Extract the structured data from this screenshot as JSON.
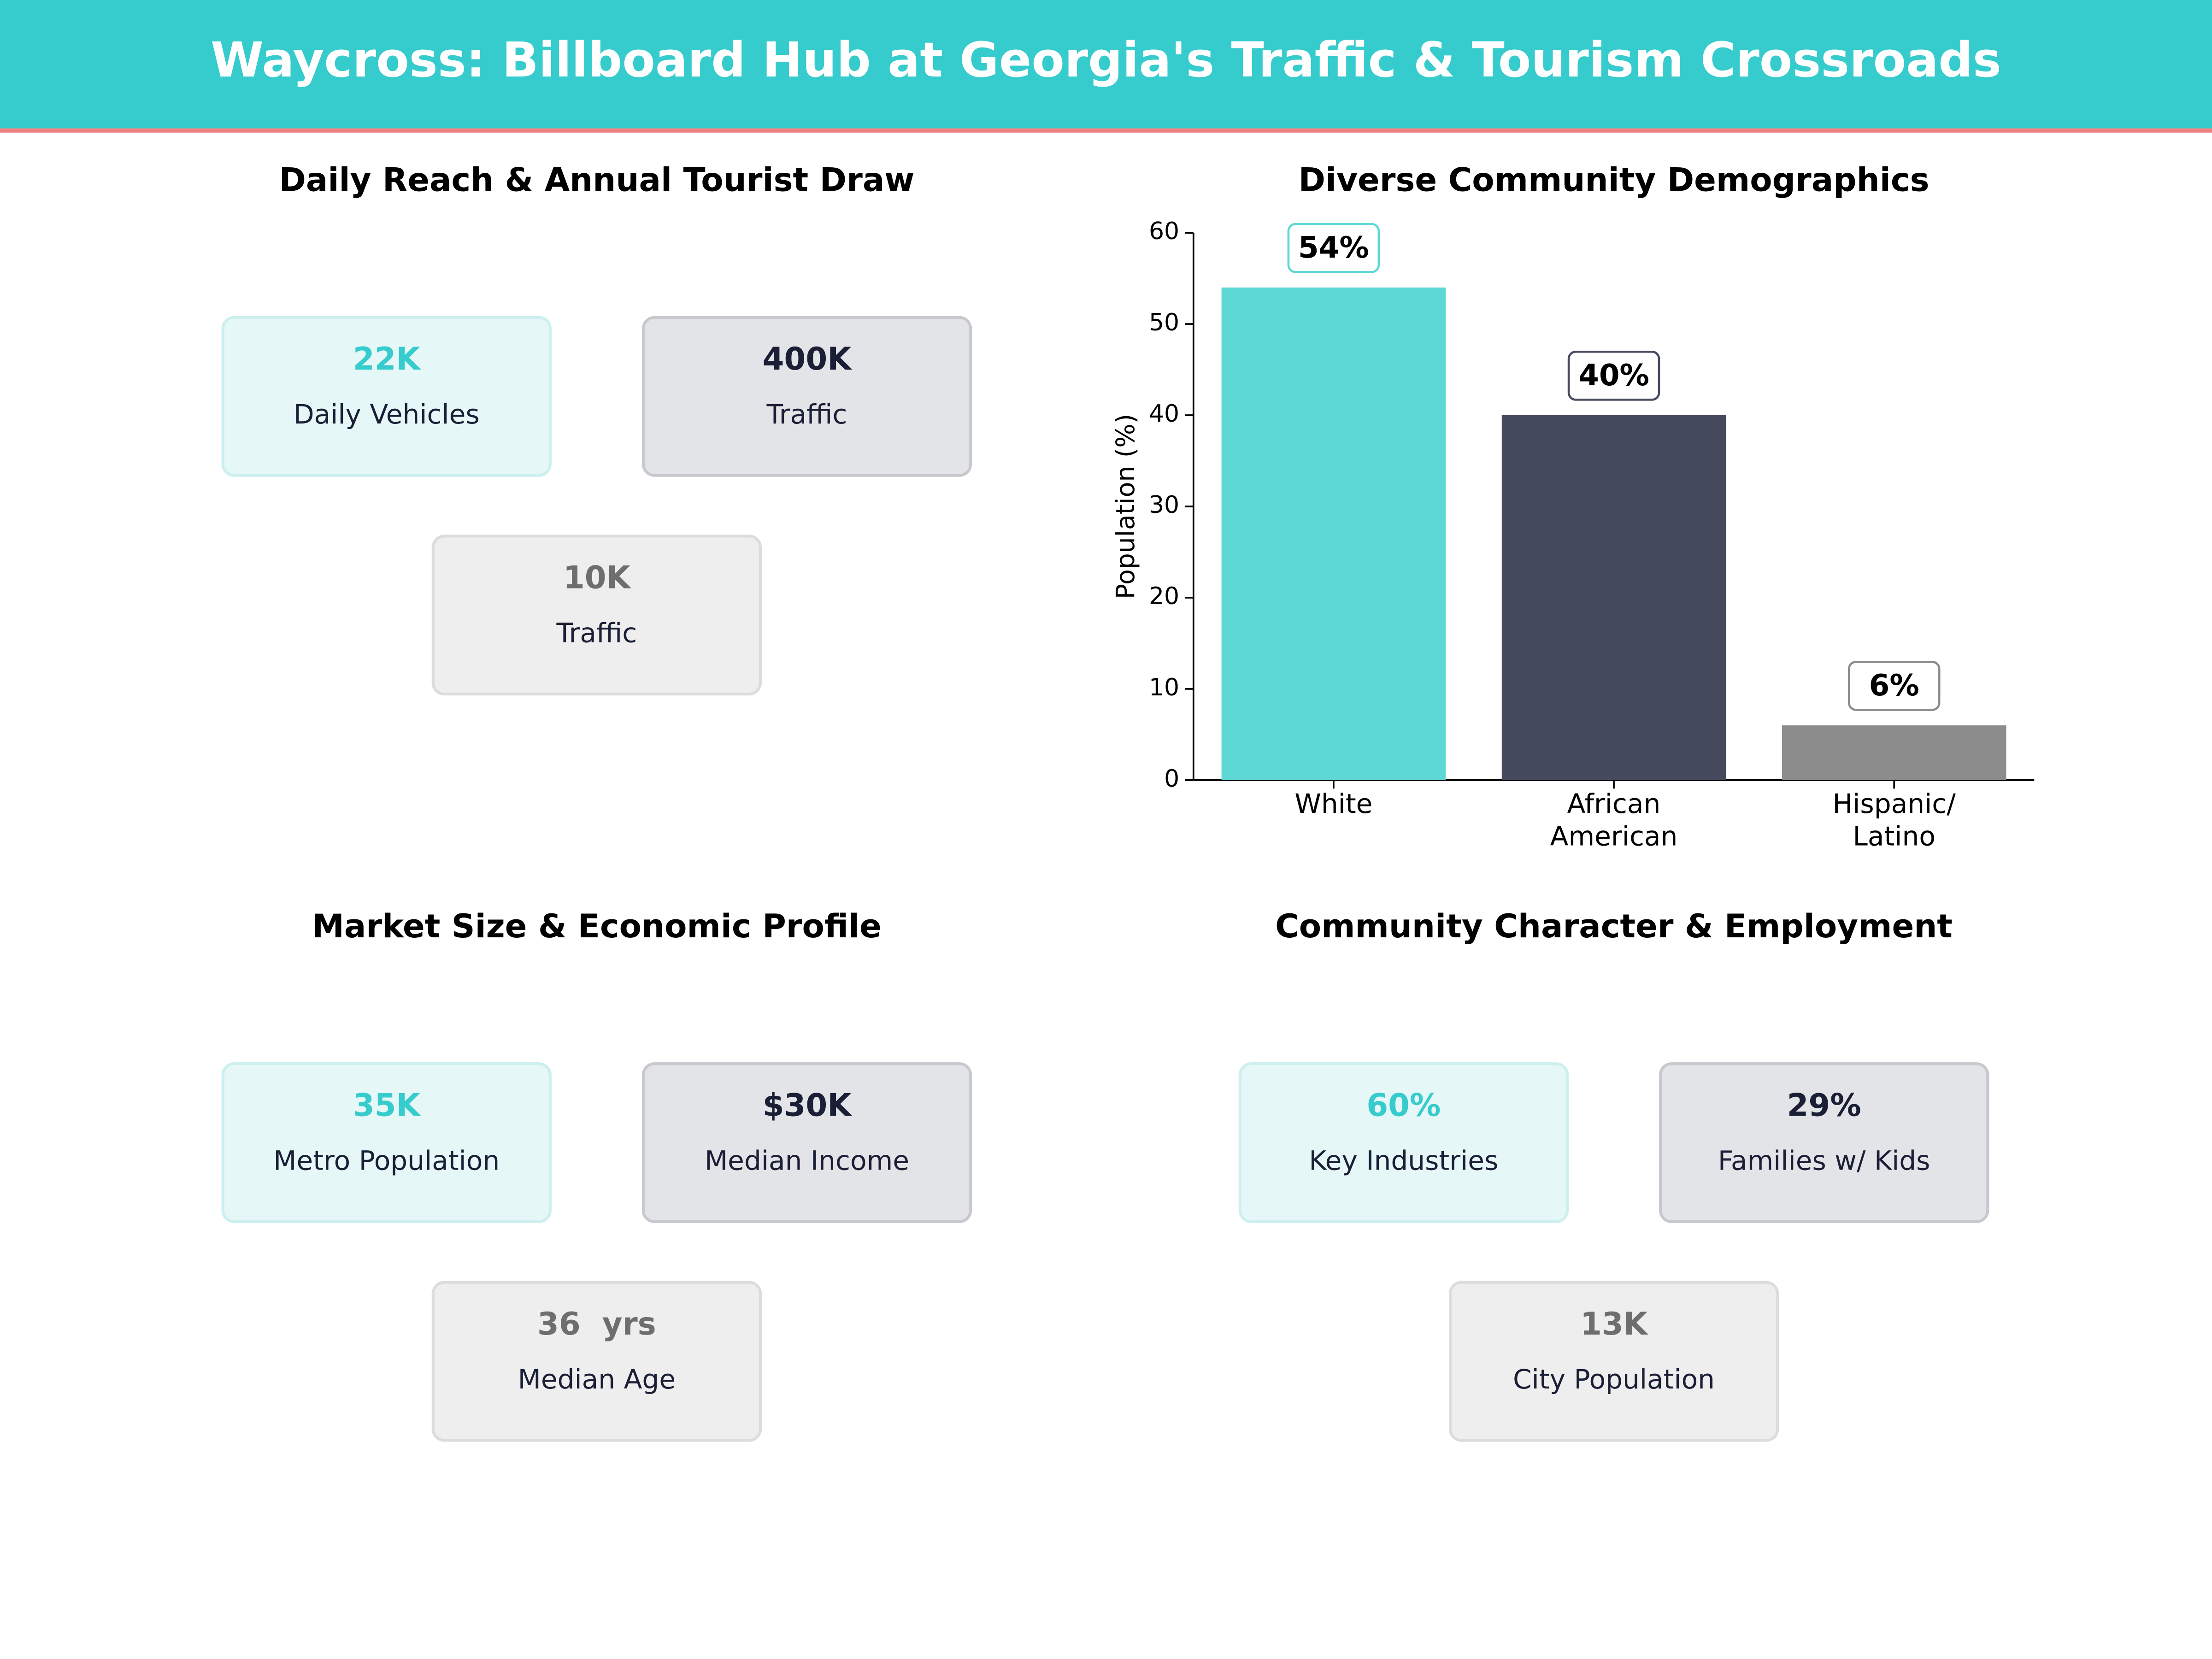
{
  "header": {
    "title": "Waycross: Billboard Hub at Georgia's Traffic & Tourism Crossroads"
  },
  "panels": [
    {
      "title": "Daily Reach & Annual Tourist Draw",
      "cards": [
        {
          "value": "22K",
          "label": "Daily Vehicles"
        },
        {
          "value": "400K",
          "label": "Traffic"
        },
        {
          "value": "10K",
          "label": "Traffic"
        }
      ]
    },
    {
      "title": "Market Size & Economic Profile",
      "cards": [
        {
          "value": "35K",
          "label": "Metro Population"
        },
        {
          "value": "$30K",
          "label": "Median Income"
        },
        {
          "value": "36  yrs",
          "label": "Median Age"
        }
      ]
    },
    {
      "title": "Community Character & Employment",
      "cards": [
        {
          "value": "60%",
          "label": "Key Industries"
        },
        {
          "value": "29%",
          "label": "Families w/ Kids"
        },
        {
          "value": "13K",
          "label": "City Population"
        }
      ]
    }
  ],
  "chart_data": {
    "type": "bar",
    "title": "Diverse Community Demographics",
    "ylabel": "Population (%)",
    "categories": [
      "White",
      "African\nAmerican",
      "Hispanic/\nLatino"
    ],
    "values": [
      54,
      40,
      6
    ],
    "value_labels": [
      "54%",
      "40%",
      "6%"
    ],
    "colors": [
      "#5dd8d4",
      "#454a5f",
      "#8c8c8c"
    ],
    "ylim": [
      0,
      60
    ],
    "yticks": [
      0,
      10,
      20,
      30,
      40,
      50,
      60
    ]
  }
}
